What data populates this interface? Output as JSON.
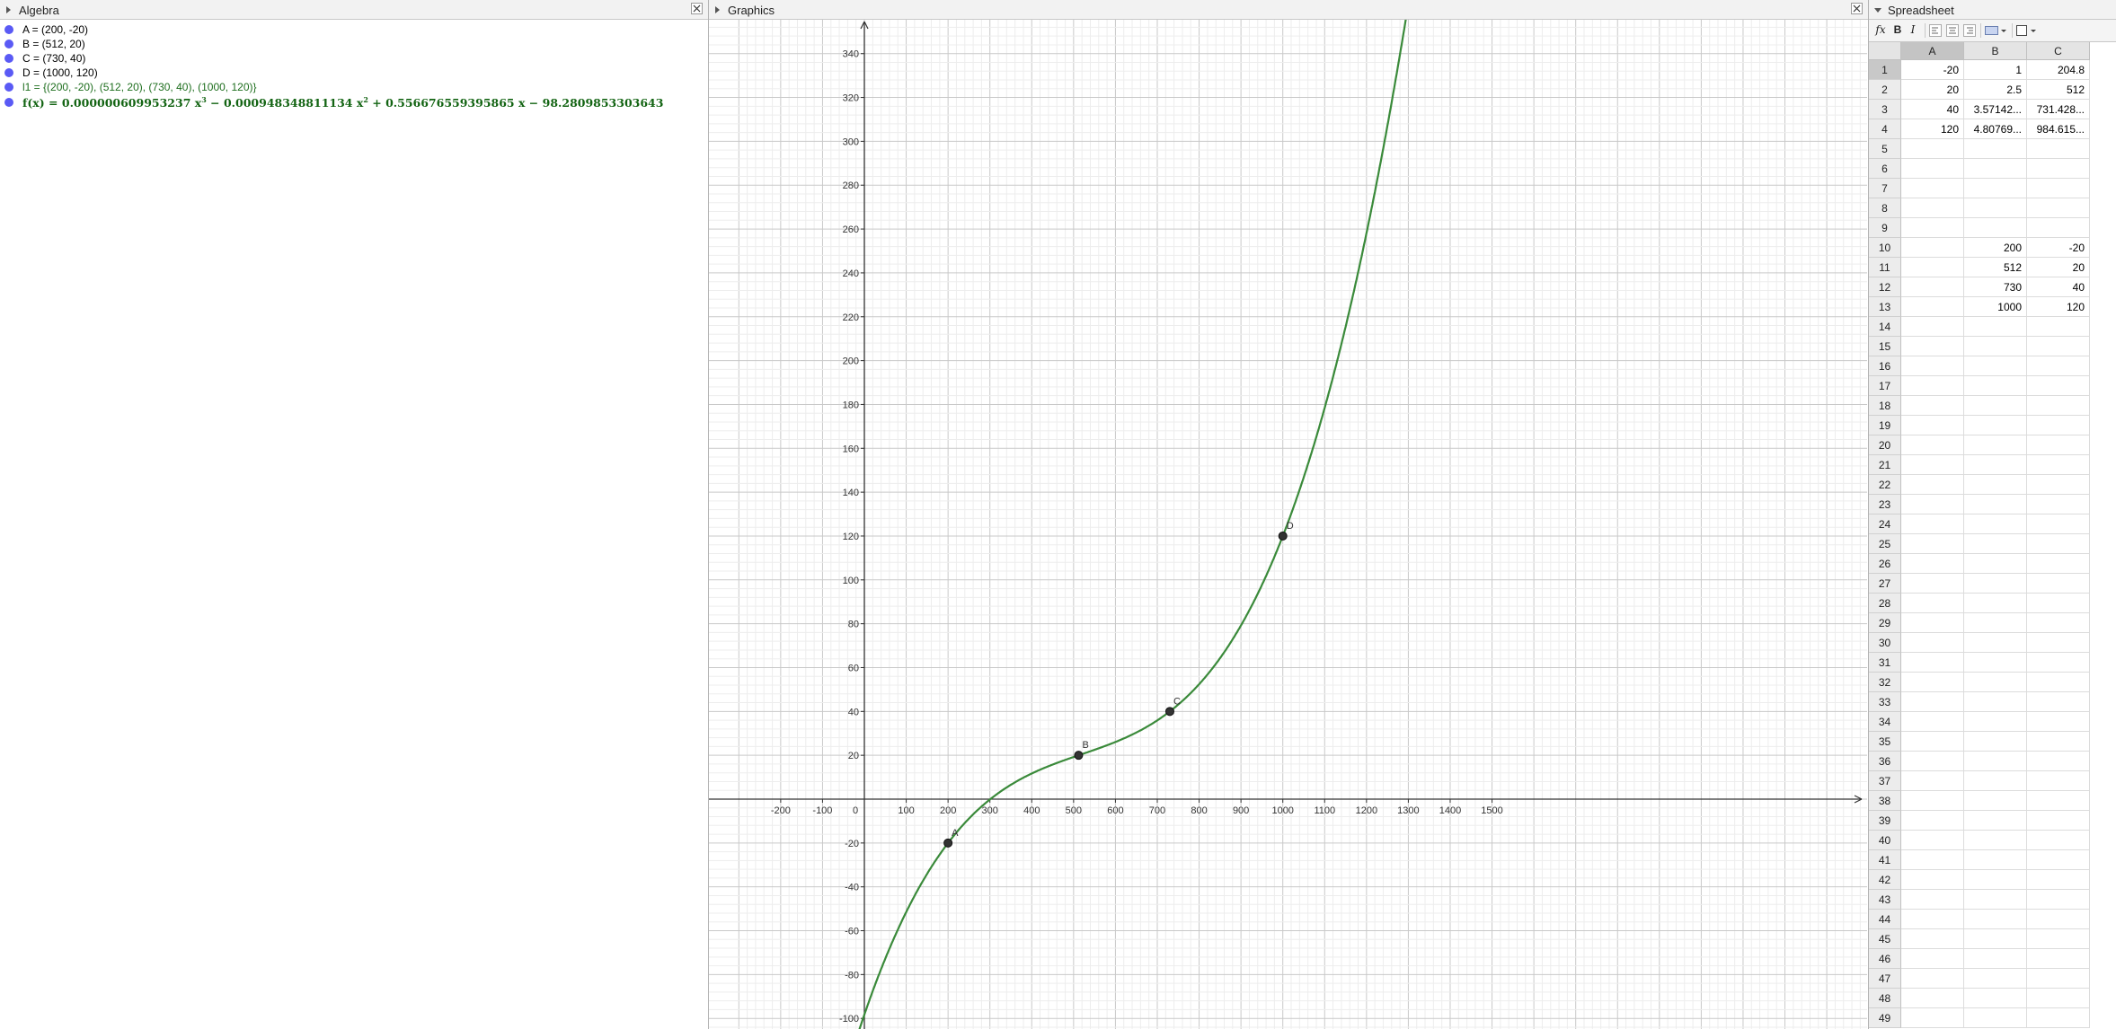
{
  "algebra": {
    "title": "Algebra",
    "items": [
      {
        "text": "A = (200, -20)"
      },
      {
        "text": "B = (512, 20)"
      },
      {
        "text": "C = (730, 40)"
      },
      {
        "text": "D = (1000, 120)"
      },
      {
        "text": "l1 = {(200, -20), (512, 20), (730, 40), (1000, 120)}"
      }
    ],
    "function": {
      "lhs": "f(x)",
      "eq": "=",
      "c3": "0.000000609953237 x",
      "e3": "3",
      "op1": "−",
      "c2": "0.000948348811134 x",
      "e2": "2",
      "op2": "+",
      "c1": "0.556676559395865 x",
      "op3": "−",
      "c0": "98.2809853303643"
    }
  },
  "graphics": {
    "title": "Graphics",
    "curve_color": "#3a8a3a",
    "point_color": "#333333",
    "points": [
      {
        "label": "A",
        "x": 200,
        "y": -20
      },
      {
        "label": "B",
        "x": 512,
        "y": 20
      },
      {
        "label": "C",
        "x": 730,
        "y": 40
      },
      {
        "label": "D",
        "x": 1000,
        "y": 120
      }
    ],
    "x_ticks": [
      "-200",
      "-100",
      "0",
      "100",
      "200",
      "300",
      "400",
      "500",
      "600",
      "700",
      "800",
      "900",
      "1000",
      "1100",
      "1200",
      "1300",
      "1400",
      "1500"
    ],
    "y_ticks": [
      "-100",
      "-80",
      "-60",
      "-40",
      "-20",
      "20",
      "40",
      "60",
      "80",
      "100",
      "120",
      "140",
      "160",
      "180",
      "200",
      "220",
      "240",
      "260",
      "280",
      "300",
      "320",
      "340"
    ]
  },
  "spreadsheet": {
    "title": "Spreadsheet",
    "toolbar": {
      "fx": "fx",
      "bold": "B",
      "italic": "I"
    },
    "columns": [
      "A",
      "B",
      "C"
    ],
    "rows": [
      {
        "n": "1",
        "cells": [
          "-20",
          "1",
          "204.8"
        ]
      },
      {
        "n": "2",
        "cells": [
          "20",
          "2.5",
          "512"
        ]
      },
      {
        "n": "3",
        "cells": [
          "40",
          "3.57142...",
          "731.428..."
        ]
      },
      {
        "n": "4",
        "cells": [
          "120",
          "4.80769...",
          "984.615..."
        ]
      },
      {
        "n": "5",
        "cells": [
          "",
          "",
          ""
        ]
      },
      {
        "n": "6",
        "cells": [
          "",
          "",
          ""
        ]
      },
      {
        "n": "7",
        "cells": [
          "",
          "",
          ""
        ]
      },
      {
        "n": "8",
        "cells": [
          "",
          "",
          ""
        ]
      },
      {
        "n": "9",
        "cells": [
          "",
          "",
          ""
        ]
      },
      {
        "n": "10",
        "cells": [
          "",
          "200",
          "-20"
        ]
      },
      {
        "n": "11",
        "cells": [
          "",
          "512",
          "20"
        ]
      },
      {
        "n": "12",
        "cells": [
          "",
          "730",
          "40"
        ]
      },
      {
        "n": "13",
        "cells": [
          "",
          "1000",
          "120"
        ]
      },
      {
        "n": "14",
        "cells": [
          "",
          "",
          ""
        ]
      },
      {
        "n": "15",
        "cells": [
          "",
          "",
          ""
        ]
      },
      {
        "n": "16",
        "cells": [
          "",
          "",
          ""
        ]
      },
      {
        "n": "17",
        "cells": [
          "",
          "",
          ""
        ]
      },
      {
        "n": "18",
        "cells": [
          "",
          "",
          ""
        ]
      },
      {
        "n": "19",
        "cells": [
          "",
          "",
          ""
        ]
      },
      {
        "n": "20",
        "cells": [
          "",
          "",
          ""
        ]
      },
      {
        "n": "21",
        "cells": [
          "",
          "",
          ""
        ]
      },
      {
        "n": "22",
        "cells": [
          "",
          "",
          ""
        ]
      },
      {
        "n": "23",
        "cells": [
          "",
          "",
          ""
        ]
      },
      {
        "n": "24",
        "cells": [
          "",
          "",
          ""
        ]
      },
      {
        "n": "25",
        "cells": [
          "",
          "",
          ""
        ]
      },
      {
        "n": "26",
        "cells": [
          "",
          "",
          ""
        ]
      },
      {
        "n": "27",
        "cells": [
          "",
          "",
          ""
        ]
      },
      {
        "n": "28",
        "cells": [
          "",
          "",
          ""
        ]
      },
      {
        "n": "29",
        "cells": [
          "",
          "",
          ""
        ]
      },
      {
        "n": "30",
        "cells": [
          "",
          "",
          ""
        ]
      },
      {
        "n": "31",
        "cells": [
          "",
          "",
          ""
        ]
      },
      {
        "n": "32",
        "cells": [
          "",
          "",
          ""
        ]
      },
      {
        "n": "33",
        "cells": [
          "",
          "",
          ""
        ]
      },
      {
        "n": "34",
        "cells": [
          "",
          "",
          ""
        ]
      },
      {
        "n": "35",
        "cells": [
          "",
          "",
          ""
        ]
      },
      {
        "n": "36",
        "cells": [
          "",
          "",
          ""
        ]
      },
      {
        "n": "37",
        "cells": [
          "",
          "",
          ""
        ]
      },
      {
        "n": "38",
        "cells": [
          "",
          "",
          ""
        ]
      },
      {
        "n": "39",
        "cells": [
          "",
          "",
          ""
        ]
      },
      {
        "n": "40",
        "cells": [
          "",
          "",
          ""
        ]
      },
      {
        "n": "41",
        "cells": [
          "",
          "",
          ""
        ]
      },
      {
        "n": "42",
        "cells": [
          "",
          "",
          ""
        ]
      },
      {
        "n": "43",
        "cells": [
          "",
          "",
          ""
        ]
      },
      {
        "n": "44",
        "cells": [
          "",
          "",
          ""
        ]
      },
      {
        "n": "45",
        "cells": [
          "",
          "",
          ""
        ]
      },
      {
        "n": "46",
        "cells": [
          "",
          "",
          ""
        ]
      },
      {
        "n": "47",
        "cells": [
          "",
          "",
          ""
        ]
      },
      {
        "n": "48",
        "cells": [
          "",
          "",
          ""
        ]
      },
      {
        "n": "49",
        "cells": [
          "",
          "",
          ""
        ]
      }
    ]
  }
}
